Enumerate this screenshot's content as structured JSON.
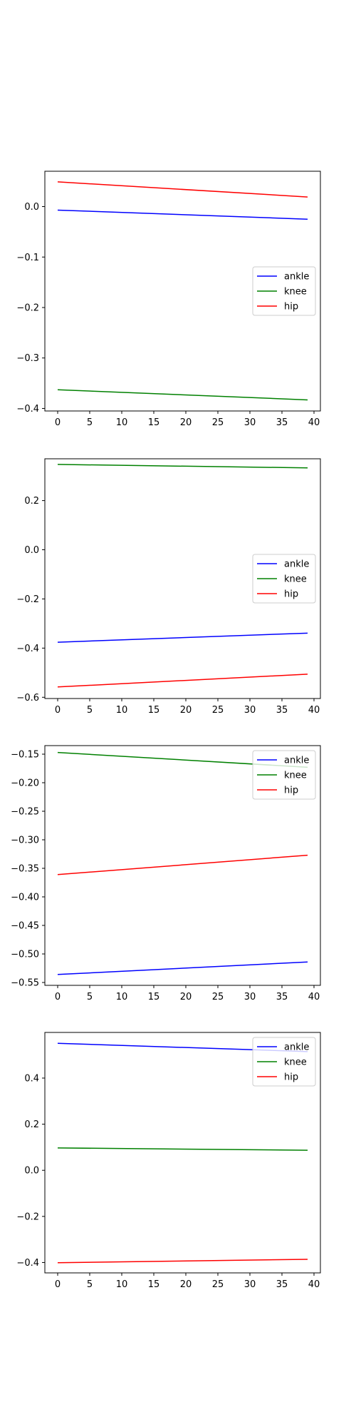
{
  "chart_data": [
    {
      "type": "line",
      "title": "",
      "xlabel": "",
      "ylabel": "",
      "xlim": [
        -2,
        41
      ],
      "ylim": [
        -0.405,
        0.07
      ],
      "xticks": [
        0,
        5,
        10,
        15,
        20,
        25,
        30,
        35,
        40
      ],
      "yticks": [
        -0.4,
        -0.3,
        -0.2,
        -0.1,
        0.0
      ],
      "ytick_labels": [
        "−0.4",
        "−0.3",
        "−0.2",
        "−0.1",
        "0.0"
      ],
      "legend": "center-right",
      "grid": false,
      "series": [
        {
          "name": "ankle",
          "color": "#0000ff",
          "x": [
            0,
            39
          ],
          "y": [
            -0.007,
            -0.025
          ]
        },
        {
          "name": "knee",
          "color": "#008000",
          "x": [
            0,
            39
          ],
          "y": [
            -0.363,
            -0.383
          ]
        },
        {
          "name": "hip",
          "color": "#ff0000",
          "x": [
            0,
            39
          ],
          "y": [
            0.049,
            0.019
          ]
        }
      ]
    },
    {
      "type": "line",
      "title": "",
      "xlabel": "",
      "ylabel": "",
      "xlim": [
        -2,
        41
      ],
      "ylim": [
        -0.605,
        0.37
      ],
      "xticks": [
        0,
        5,
        10,
        15,
        20,
        25,
        30,
        35,
        40
      ],
      "yticks": [
        -0.6,
        -0.4,
        -0.2,
        0.0,
        0.2
      ],
      "ytick_labels": [
        "−0.6",
        "−0.4",
        "−0.2",
        "0.0",
        "0.2"
      ],
      "legend": "center-right",
      "grid": false,
      "series": [
        {
          "name": "ankle",
          "color": "#0000ff",
          "x": [
            0,
            39
          ],
          "y": [
            -0.376,
            -0.339
          ]
        },
        {
          "name": "knee",
          "color": "#008000",
          "x": [
            0,
            39
          ],
          "y": [
            0.347,
            0.333
          ]
        },
        {
          "name": "hip",
          "color": "#ff0000",
          "x": [
            0,
            39
          ],
          "y": [
            -0.558,
            -0.506
          ]
        }
      ]
    },
    {
      "type": "line",
      "title": "",
      "xlabel": "",
      "ylabel": "",
      "xlim": [
        -2,
        41
      ],
      "ylim": [
        -0.555,
        -0.135
      ],
      "xticks": [
        0,
        5,
        10,
        15,
        20,
        25,
        30,
        35,
        40
      ],
      "yticks": [
        -0.55,
        -0.5,
        -0.45,
        -0.4,
        -0.35,
        -0.3,
        -0.25,
        -0.2,
        -0.15
      ],
      "ytick_labels": [
        "−0.55",
        "−0.50",
        "−0.45",
        "−0.40",
        "−0.35",
        "−0.30",
        "−0.25",
        "−0.20",
        "−0.15"
      ],
      "legend": "top-right",
      "grid": false,
      "series": [
        {
          "name": "ankle",
          "color": "#0000ff",
          "x": [
            0,
            39
          ],
          "y": [
            -0.536,
            -0.514
          ]
        },
        {
          "name": "knee",
          "color": "#008000",
          "x": [
            0,
            39
          ],
          "y": [
            -0.147,
            -0.173
          ]
        },
        {
          "name": "hip",
          "color": "#ff0000",
          "x": [
            0,
            39
          ],
          "y": [
            -0.361,
            -0.327
          ]
        }
      ]
    },
    {
      "type": "line",
      "title": "",
      "xlabel": "",
      "ylabel": "",
      "xlim": [
        -2,
        41
      ],
      "ylim": [
        -0.445,
        0.598
      ],
      "xticks": [
        0,
        5,
        10,
        15,
        20,
        25,
        30,
        35,
        40
      ],
      "yticks": [
        -0.4,
        -0.2,
        0.0,
        0.2,
        0.4
      ],
      "ytick_labels": [
        "−0.4",
        "−0.2",
        "0.0",
        "0.2",
        "0.4"
      ],
      "legend": "top-right",
      "grid": false,
      "series": [
        {
          "name": "ankle",
          "color": "#0000ff",
          "x": [
            0,
            39
          ],
          "y": [
            0.551,
            0.515
          ]
        },
        {
          "name": "knee",
          "color": "#008000",
          "x": [
            0,
            39
          ],
          "y": [
            0.097,
            0.087
          ]
        },
        {
          "name": "hip",
          "color": "#ff0000",
          "x": [
            0,
            39
          ],
          "y": [
            -0.401,
            -0.386
          ]
        }
      ]
    }
  ]
}
